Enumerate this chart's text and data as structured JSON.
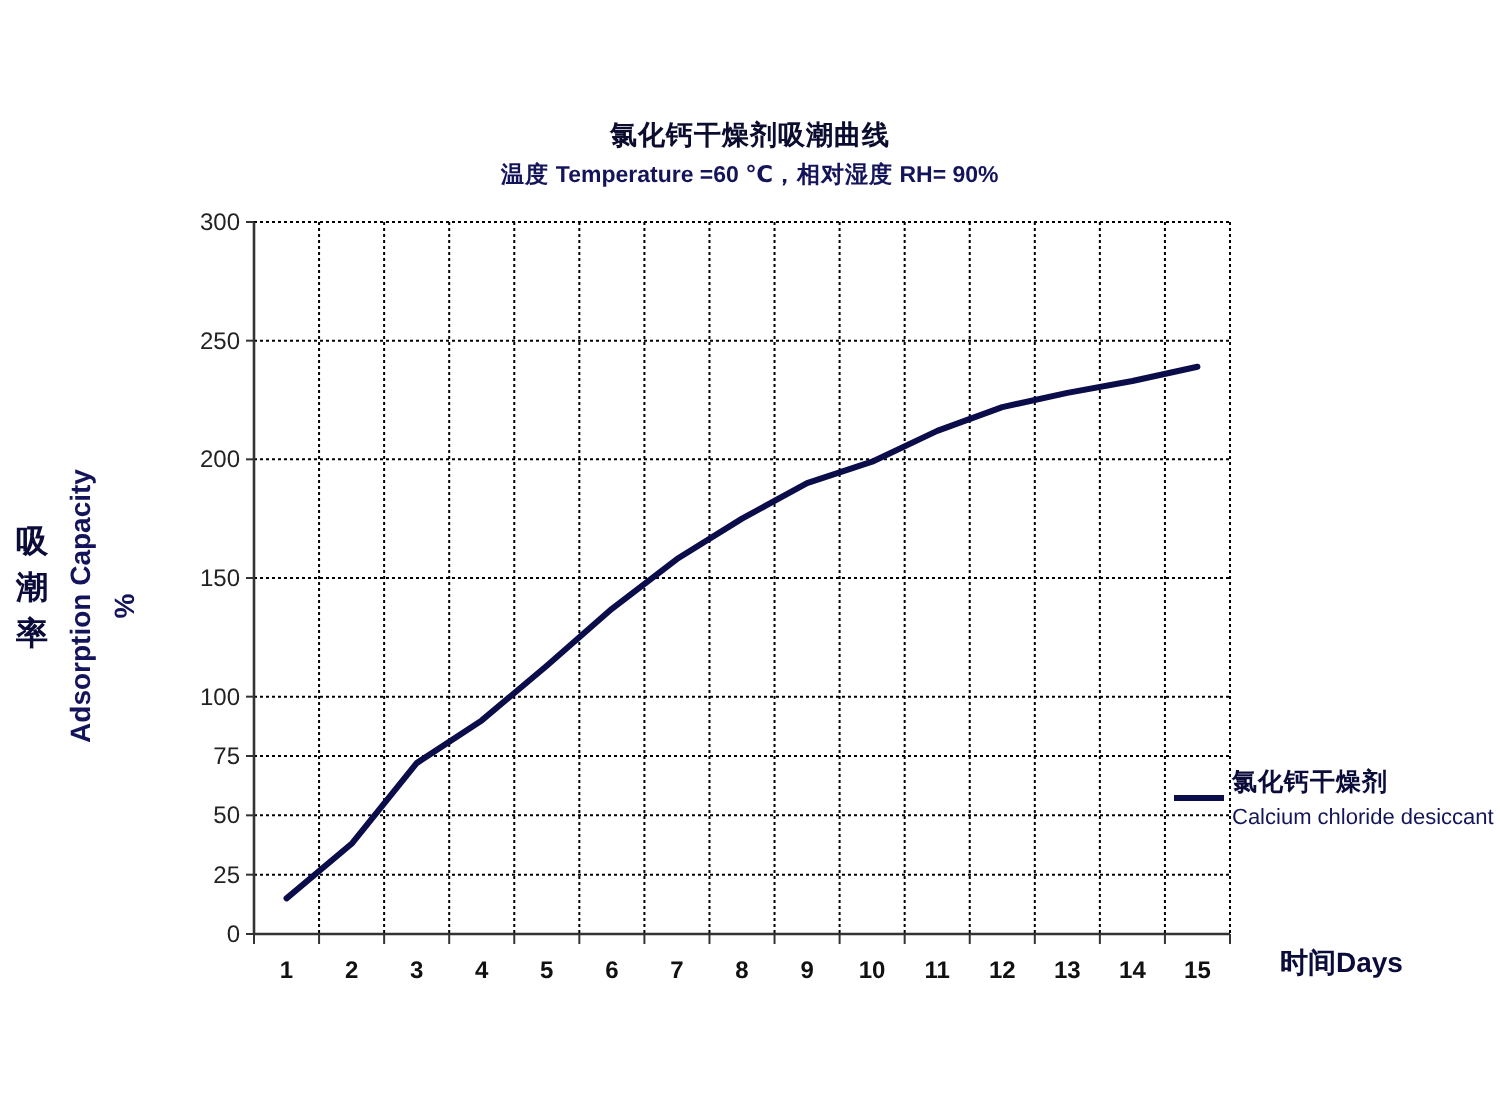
{
  "chart_data": {
    "type": "line",
    "title": "氯化钙干燥剂吸潮曲线",
    "subtitle": "温度 Temperature =60 ℃，相对湿度 RH= 90%",
    "xlabel": "时间Days",
    "ylabel": "吸潮率\nAdsorption Capacity\n%",
    "categories": [
      "1",
      "2",
      "3",
      "4",
      "5",
      "6",
      "7",
      "8",
      "9",
      "10",
      "11",
      "12",
      "13",
      "14",
      "15"
    ],
    "series": [
      {
        "name": "氯化钙干燥剂\nCalcium chloride desiccant",
        "color": "#0b0c4a",
        "values": [
          15,
          38,
          72,
          90,
          113,
          137,
          158,
          175,
          190,
          199,
          212,
          222,
          228,
          233,
          239
        ]
      }
    ],
    "ylim": [
      0,
      300
    ],
    "yticks": [
      0,
      25,
      50,
      75,
      100,
      150,
      200,
      250,
      300
    ],
    "grid": true,
    "legend": "right",
    "line_style": "solid"
  }
}
